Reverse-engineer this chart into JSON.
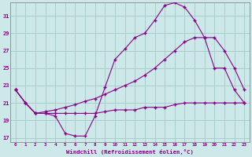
{
  "xlabel": "Windchill (Refroidissement éolien,°C)",
  "background_color": "#cce8e8",
  "grid_color": "#aacccc",
  "line_color": "#880088",
  "x_ticks": [
    0,
    1,
    2,
    3,
    4,
    5,
    6,
    7,
    8,
    9,
    10,
    11,
    12,
    13,
    14,
    15,
    16,
    17,
    18,
    19,
    20,
    21,
    22,
    23
  ],
  "y_ticks": [
    17,
    19,
    21,
    23,
    25,
    27,
    29,
    31
  ],
  "ylim": [
    16.5,
    32.5
  ],
  "xlim": [
    -0.5,
    23.5
  ],
  "line1_y": [
    22.5,
    21.0,
    19.8,
    19.8,
    19.5,
    17.5,
    17.2,
    17.2,
    19.5,
    22.8,
    26.0,
    27.2,
    28.5,
    29.0,
    30.5,
    32.2,
    32.5,
    32.0,
    30.5,
    28.5,
    25.0,
    25.0,
    22.5,
    21.0
  ],
  "line2_y": [
    22.5,
    21.0,
    19.8,
    20.0,
    20.2,
    20.5,
    20.8,
    21.2,
    21.5,
    22.0,
    22.5,
    23.0,
    23.5,
    24.2,
    25.0,
    26.0,
    27.0,
    28.0,
    28.5,
    28.5,
    28.5,
    27.0,
    25.0,
    22.5
  ],
  "line3_y": [
    22.5,
    21.0,
    19.8,
    19.8,
    19.8,
    19.8,
    19.8,
    19.8,
    19.8,
    20.0,
    20.2,
    20.2,
    20.2,
    20.5,
    20.5,
    20.5,
    20.8,
    21.0,
    21.0,
    21.0,
    21.0,
    21.0,
    21.0,
    21.0
  ]
}
